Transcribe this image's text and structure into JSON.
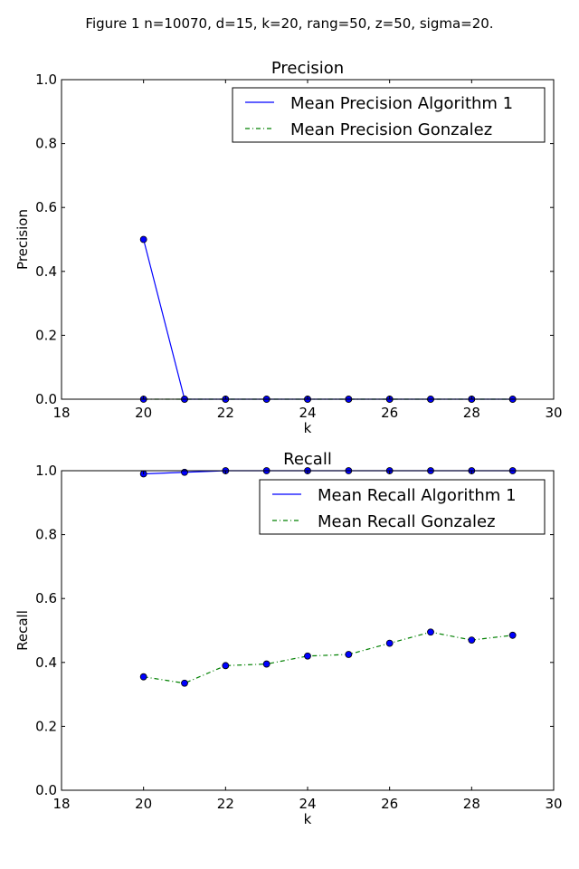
{
  "figure_title": "Figure 1 n=10070, d=15, k=20, rang=50, z=50, sigma=20.",
  "chart_data": [
    {
      "type": "line",
      "title": "Precision",
      "xlabel": "k",
      "ylabel": "Precision",
      "xlim": [
        18,
        30
      ],
      "ylim": [
        0,
        1.0
      ],
      "xticks": [
        18,
        20,
        22,
        24,
        26,
        28,
        30
      ],
      "yticks": [
        0.0,
        0.2,
        0.4,
        0.6,
        0.8,
        1.0
      ],
      "grid": false,
      "legend_position": "top-right",
      "x": [
        20,
        21,
        22,
        23,
        24,
        25,
        26,
        27,
        28,
        29
      ],
      "series": [
        {
          "name": "Mean Precision Algorithm 1",
          "color": "#0000ff",
          "style": "solid",
          "values": [
            0.5,
            0,
            0,
            0,
            0,
            0,
            0,
            0,
            0,
            0
          ]
        },
        {
          "name": "Mean Precision Gonzalez",
          "color": "#008000",
          "style": "dashdot",
          "values": [
            0,
            0,
            0,
            0,
            0,
            0,
            0,
            0,
            0,
            0
          ]
        }
      ]
    },
    {
      "type": "line",
      "title": "Recall",
      "xlabel": "k",
      "ylabel": "Recall",
      "xlim": [
        18,
        30
      ],
      "ylim": [
        0,
        1.0
      ],
      "xticks": [
        18,
        20,
        22,
        24,
        26,
        28,
        30
      ],
      "yticks": [
        0.0,
        0.2,
        0.4,
        0.6,
        0.8,
        1.0
      ],
      "grid": false,
      "legend_position": "top-right",
      "x": [
        20,
        21,
        22,
        23,
        24,
        25,
        26,
        27,
        28,
        29
      ],
      "series": [
        {
          "name": "Mean Recall Algorithm 1",
          "color": "#0000ff",
          "style": "solid",
          "values": [
            0.99,
            0.995,
            1.0,
            1.0,
            1.0,
            1.0,
            1.0,
            1.0,
            1.0,
            1.0
          ]
        },
        {
          "name": "Mean Recall Gonzalez",
          "color": "#008000",
          "style": "dashdot",
          "values": [
            0.355,
            0.335,
            0.39,
            0.395,
            0.42,
            0.425,
            0.46,
            0.495,
            0.47,
            0.485
          ]
        }
      ]
    }
  ]
}
